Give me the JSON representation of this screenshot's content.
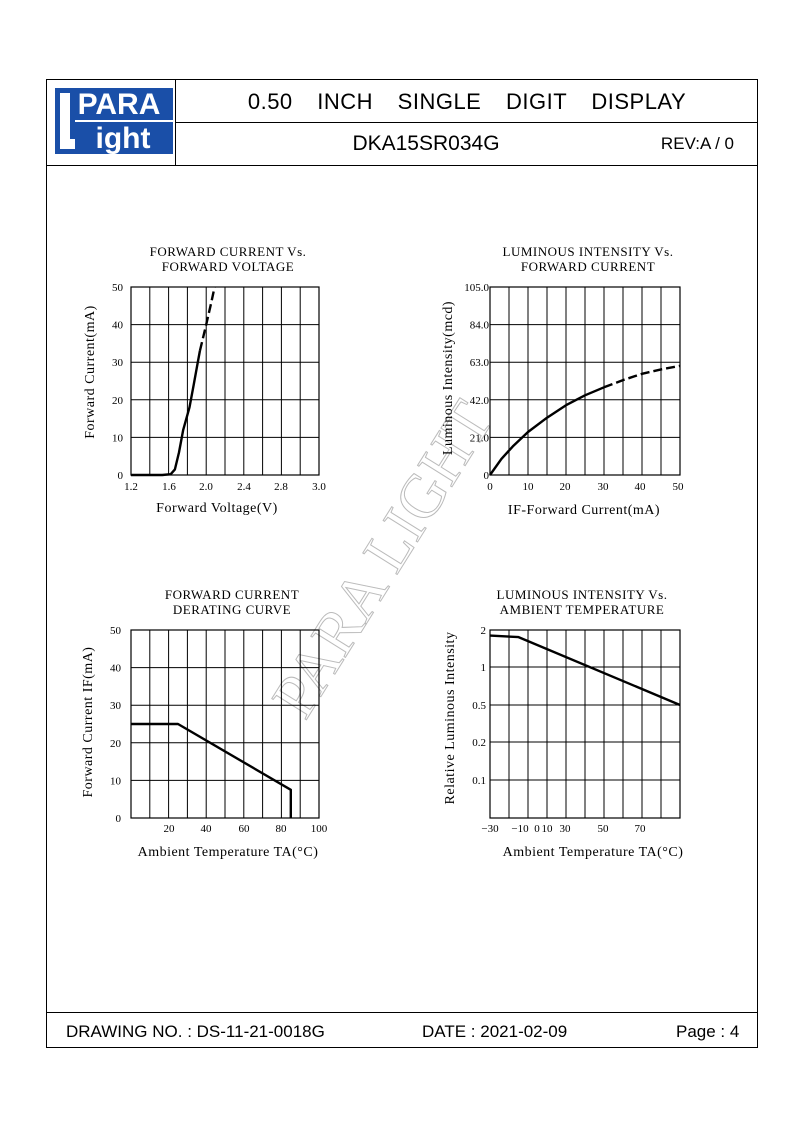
{
  "logo": {
    "top": "PARA",
    "bottom": "ight",
    "letter": "L",
    "brand_color": "#1a4fa8"
  },
  "header": {
    "title": "0.50  INCH  SINGLE  DIGIT  DISPLAY",
    "part_number": "DKA15SR034G",
    "revision": "REV:A / 0"
  },
  "watermark": "PARA LIGHT",
  "footer": {
    "drawing_no": "DRAWING NO. : DS-11-21-0018G",
    "date": "DATE : 2021-02-09",
    "page": "Page : 4"
  },
  "chart_data": [
    {
      "type": "line",
      "title": "FORWARD CURRENT Vs.",
      "subtitle": "FORWARD VOLTAGE",
      "xlabel": "Forward Voltage(V)",
      "ylabel": "Forward Current(mA)",
      "xlim": [
        1.2,
        3.0
      ],
      "ylim": [
        0,
        50
      ],
      "x_ticks": [
        "1.2",
        "1.6",
        "2.0",
        "2.4",
        "2.8",
        "3.0"
      ],
      "y_ticks": [
        "0",
        "10",
        "20",
        "30",
        "40",
        "50"
      ],
      "grid": true,
      "series": [
        {
          "values": [
            [
              1.2,
              0
            ],
            [
              1.5,
              0
            ],
            [
              1.58,
              0.2
            ],
            [
              1.62,
              1.5
            ],
            [
              1.66,
              6
            ],
            [
              1.7,
              12
            ],
            [
              1.76,
              18
            ],
            [
              1.8,
              24
            ],
            [
              1.84,
              30
            ],
            [
              1.86,
              33
            ]
          ],
          "style": "solid"
        },
        {
          "values": [
            [
              1.86,
              33
            ],
            [
              1.92,
              40
            ],
            [
              1.97,
              46
            ],
            [
              2.0,
              50
            ]
          ],
          "style": "dashed"
        }
      ]
    },
    {
      "type": "line",
      "title": "LUMINOUS INTENSITY Vs.",
      "subtitle": "FORWARD CURRENT",
      "xlabel": "IF-Forward Current(mA)",
      "ylabel": "Luminous Intensity(mcd)",
      "xlim": [
        0,
        50
      ],
      "ylim": [
        0,
        105
      ],
      "x_ticks": [
        "0",
        "10",
        "20",
        "30",
        "40",
        "50"
      ],
      "y_ticks": [
        "0",
        "21.0",
        "42.0",
        "63.0",
        "84.0",
        "105.0"
      ],
      "grid": true,
      "series": [
        {
          "values": [
            [
              0,
              0
            ],
            [
              3,
              9
            ],
            [
              6,
              16
            ],
            [
              10,
              24
            ],
            [
              15,
              32
            ],
            [
              20,
              39
            ],
            [
              25,
              44.5
            ],
            [
              30,
              49
            ]
          ],
          "style": "solid"
        },
        {
          "values": [
            [
              30,
              49
            ],
            [
              35,
              53
            ],
            [
              40,
              56.5
            ],
            [
              45,
              59
            ],
            [
              50,
              61
            ]
          ],
          "style": "dashed"
        }
      ]
    },
    {
      "type": "line",
      "title": "FORWARD CURRENT",
      "subtitle": "DERATING CURVE",
      "xlabel": "Ambient Temperature TA(°C)",
      "ylabel": "Forward Current IF(mA)",
      "xlim": [
        0,
        100
      ],
      "ylim": [
        0,
        50
      ],
      "x_ticks": [
        "20",
        "40",
        "60",
        "80",
        "100"
      ],
      "y_ticks": [
        "0",
        "10",
        "20",
        "30",
        "40",
        "50"
      ],
      "grid": true,
      "series": [
        {
          "values": [
            [
              0,
              25
            ],
            [
              25,
              25
            ],
            [
              85,
              7.5
            ],
            [
              85,
              0
            ]
          ],
          "style": "solid"
        }
      ]
    },
    {
      "type": "line",
      "title": "LUMINOUS INTENSITY Vs.",
      "subtitle": "AMBIENT TEMPERATURE",
      "xlabel": "Ambient Temperature TA(°C)",
      "ylabel": "Relative Luminous Intensity",
      "xlim": [
        -30,
        70
      ],
      "ylim": [
        0,
        5
      ],
      "x_ticks": [
        "-30",
        "-10",
        "0",
        "10",
        "30",
        "50",
        "70"
      ],
      "y_ticks": [
        "0.1",
        "0.2",
        "0.5",
        "1",
        "2"
      ],
      "grid": true,
      "series": [
        {
          "values": [
            [
              -30,
              1.8
            ],
            [
              -15,
              1.75
            ],
            [
              70,
              0.5
            ]
          ],
          "style": "solid"
        }
      ]
    }
  ]
}
